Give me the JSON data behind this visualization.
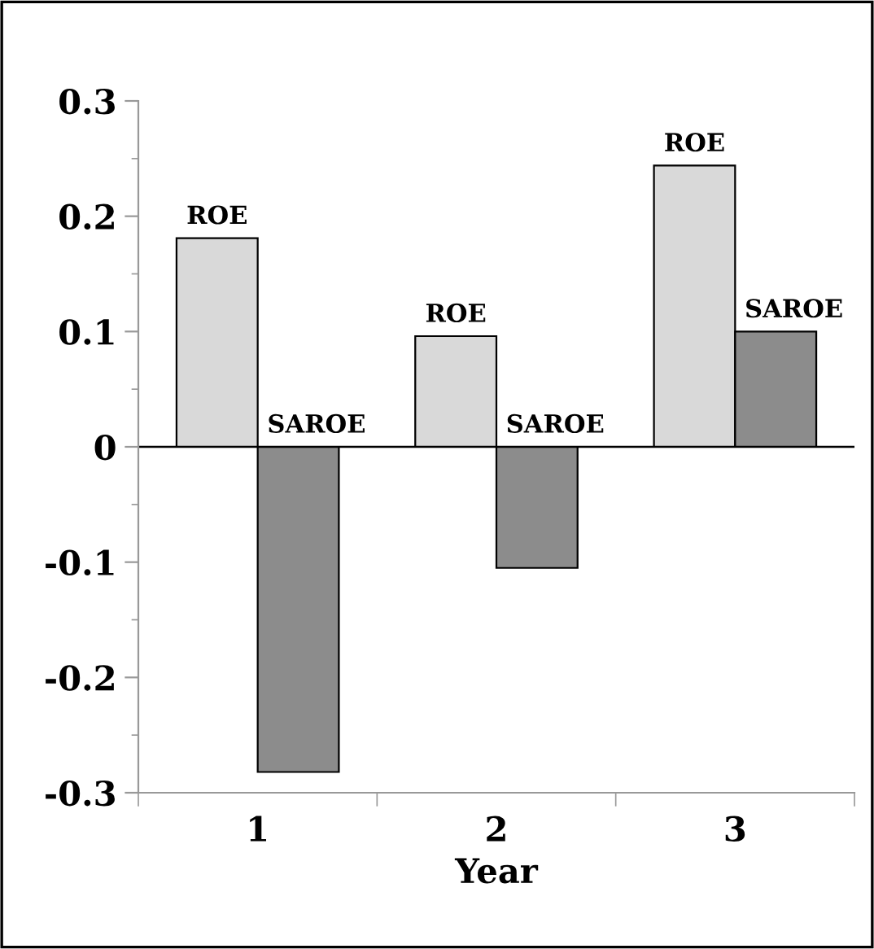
{
  "chart_data": {
    "type": "bar",
    "xlabel": "Year",
    "categories": [
      "1",
      "2",
      "3"
    ],
    "series": [
      {
        "name": "ROE",
        "color": "#d9d9d9",
        "values": [
          0.181,
          0.096,
          0.244
        ]
      },
      {
        "name": "SAROE",
        "color": "#8c8c8c",
        "values": [
          -0.282,
          -0.105,
          0.1
        ]
      }
    ],
    "ylim": [
      -0.3,
      0.3
    ],
    "yticks": [
      -0.3,
      -0.2,
      -0.1,
      0,
      0.1,
      0.2,
      0.3
    ],
    "ref_lines": [
      {
        "axis": "y",
        "value": 0,
        "color": "#000000",
        "line_style": "solid"
      }
    ],
    "grid": false,
    "legend": false
  }
}
